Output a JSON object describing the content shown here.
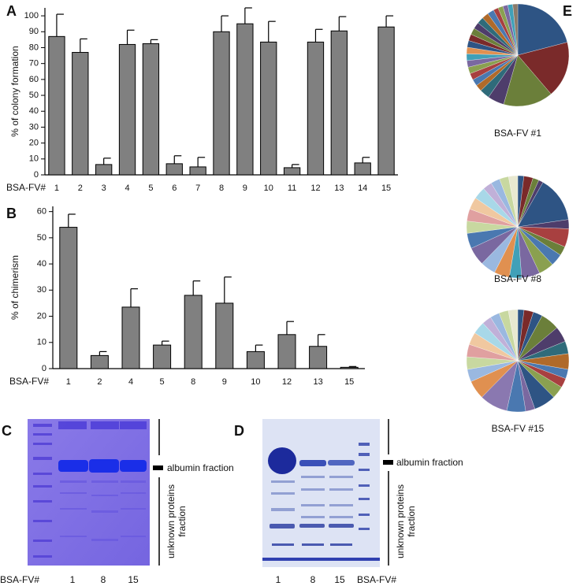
{
  "chart_data": [
    {
      "type": "bar",
      "panel": "A",
      "ylabel": "% of colony formation",
      "xlabel": "BSA-FV#",
      "categories": [
        "1",
        "2",
        "3",
        "4",
        "5",
        "6",
        "7",
        "8",
        "9",
        "10",
        "11",
        "12",
        "13",
        "14",
        "15"
      ],
      "values": [
        87,
        77,
        6.5,
        82,
        82.5,
        7,
        5,
        90,
        95,
        83.5,
        4.5,
        83.5,
        90.5,
        7.5,
        93
      ],
      "errors": [
        14,
        8.5,
        4,
        9,
        2.5,
        5,
        6,
        10,
        10,
        13,
        2,
        8,
        9,
        3.5,
        7
      ],
      "color": "#808080",
      "ylim": [
        0,
        105
      ],
      "yticks": [
        0,
        10,
        20,
        30,
        40,
        50,
        60,
        70,
        80,
        90,
        100
      ]
    },
    {
      "type": "bar",
      "panel": "B",
      "ylabel": "% of chimerism",
      "xlabel": "BSA-FV#",
      "categories": [
        "1",
        "2",
        "4",
        "5",
        "8",
        "9",
        "10",
        "12",
        "13",
        "15"
      ],
      "values": [
        54,
        5,
        23.5,
        9,
        28,
        25,
        6.5,
        13,
        8.5,
        0.5
      ],
      "errors": [
        5,
        1.5,
        7,
        1.5,
        5.5,
        10,
        2.5,
        5,
        4.5,
        0.3
      ],
      "color": "#808080",
      "ylim": [
        0,
        62
      ],
      "yticks": [
        0,
        10,
        20,
        30,
        40,
        50,
        60
      ]
    },
    {
      "type": "pie",
      "panel": "E",
      "title": "BSA-FV #1",
      "values": [
        20,
        17,
        15,
        5,
        3,
        2,
        2,
        2,
        2,
        2,
        2,
        2,
        2,
        2,
        2,
        2,
        2,
        2,
        2,
        1.5,
        1.5,
        1.5,
        1.5,
        1.5
      ],
      "colors": [
        "#2e5484",
        "#7a2a2a",
        "#6b7f3a",
        "#4e3d6b",
        "#2f6b7a",
        "#b06a2a",
        "#4a78b0",
        "#a84040",
        "#8aa050",
        "#7a68a0",
        "#40a0b8",
        "#e09050",
        "#2e5484",
        "#7a2a2a",
        "#6b7f3a",
        "#4e3d6b",
        "#2f6b7a",
        "#b06a2a",
        "#4a78b0",
        "#a84040",
        "#8aa050",
        "#7a68a0",
        "#40a0b8",
        "#8a7a6a"
      ]
    },
    {
      "type": "pie",
      "title": "BSA-FV #8",
      "values": [
        2,
        3,
        2,
        1.5,
        15,
        3,
        6,
        3,
        4,
        5,
        6,
        4,
        5,
        5,
        6,
        5,
        4,
        4,
        4,
        4,
        3,
        3,
        3,
        3
      ],
      "colors": [
        "#2e5484",
        "#7a2a2a",
        "#6b7f3a",
        "#4e3d6b",
        "#2e5484",
        "#4e3d6b",
        "#a84040",
        "#6b7f3a",
        "#4a78b0",
        "#8aa050",
        "#7a68a0",
        "#40a0b8",
        "#e09050",
        "#9ab8e0",
        "#7a68a0",
        "#4a78b0",
        "#c8d8a0",
        "#e0a0a0",
        "#f0c8a0",
        "#a8d8e8",
        "#c0b0d8",
        "#9ab8e0",
        "#c8d8a0",
        "#e8e8d0"
      ]
    },
    {
      "type": "pie",
      "title": "BSA-FV #15",
      "values": [
        2,
        3,
        3,
        6,
        5,
        4,
        5,
        3,
        3,
        4,
        7,
        3,
        6,
        9,
        6,
        4,
        4,
        4,
        4,
        4,
        3,
        3,
        3,
        3
      ],
      "colors": [
        "#2e5484",
        "#7a2a2a",
        "#2e5484",
        "#6b7f3a",
        "#4e3d6b",
        "#2f6b7a",
        "#b06a2a",
        "#4a78b0",
        "#a84040",
        "#8aa050",
        "#2e5484",
        "#7a68a0",
        "#4a78b0",
        "#8a78b0",
        "#e09050",
        "#9ab8e0",
        "#c8d8a0",
        "#e0a0a0",
        "#f0c8a0",
        "#a8d8e8",
        "#c0b0d8",
        "#9ab8e0",
        "#c8d8a0",
        "#e8e8d0"
      ]
    }
  ],
  "gels": [
    {
      "panel": "C",
      "band_label": "albumin fraction",
      "bracket_label": [
        "unknown proteins",
        "fraction"
      ],
      "lane_title": "BSA-FV#",
      "lanes": [
        "1",
        "8",
        "15"
      ]
    },
    {
      "panel": "D",
      "band_label": "albumin fraction",
      "bracket_label": [
        "unknown proteins",
        "fraction"
      ],
      "lane_title": "BSA-FV#",
      "lanes": [
        "1",
        "8",
        "15"
      ]
    }
  ]
}
